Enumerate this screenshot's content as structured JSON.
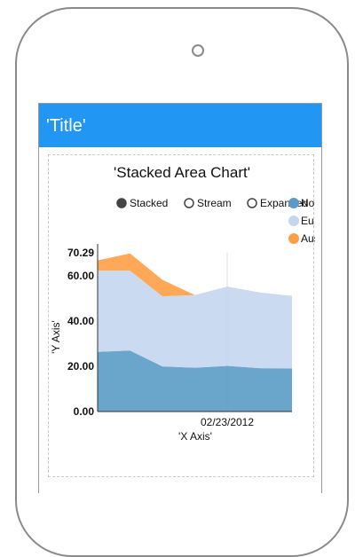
{
  "app": {
    "title": "'Title'"
  },
  "controls": {
    "options": [
      {
        "label": "Stacked",
        "selected": true
      },
      {
        "label": "Stream",
        "selected": false
      },
      {
        "label": "Expanded",
        "selected": false
      }
    ]
  },
  "colors": {
    "app_bar": "#2196f3",
    "series": [
      "#5a9bc7",
      "#c4d6ef",
      "#ff9f45"
    ]
  },
  "chart_data": {
    "type": "area",
    "stacked": true,
    "title": "'Stacked Area Chart'",
    "xlabel": "'X Axis'",
    "ylabel": "'Y Axis'",
    "ylim": [
      0,
      70.29
    ],
    "y_ticks": [
      "0.00",
      "20.00",
      "40.00",
      "60.00",
      "70.29"
    ],
    "x_ticks": [
      "02/23/2012"
    ],
    "grid": true,
    "legend_position": "top-right",
    "x": [
      0,
      1,
      2,
      3,
      4,
      5,
      6
    ],
    "series": [
      {
        "name": "No",
        "values": [
          26.4,
          27.0,
          20.0,
          19.4,
          20.2,
          19.2,
          19.1
        ]
      },
      {
        "name": "Eu",
        "values": [
          36.0,
          35.4,
          31.0,
          32.2,
          35.1,
          33.5,
          32.1
        ]
      },
      {
        "name": "Aus",
        "values": [
          4.5,
          7.6,
          7.3,
          0.0,
          0.0,
          0.0,
          0.0
        ]
      }
    ]
  }
}
